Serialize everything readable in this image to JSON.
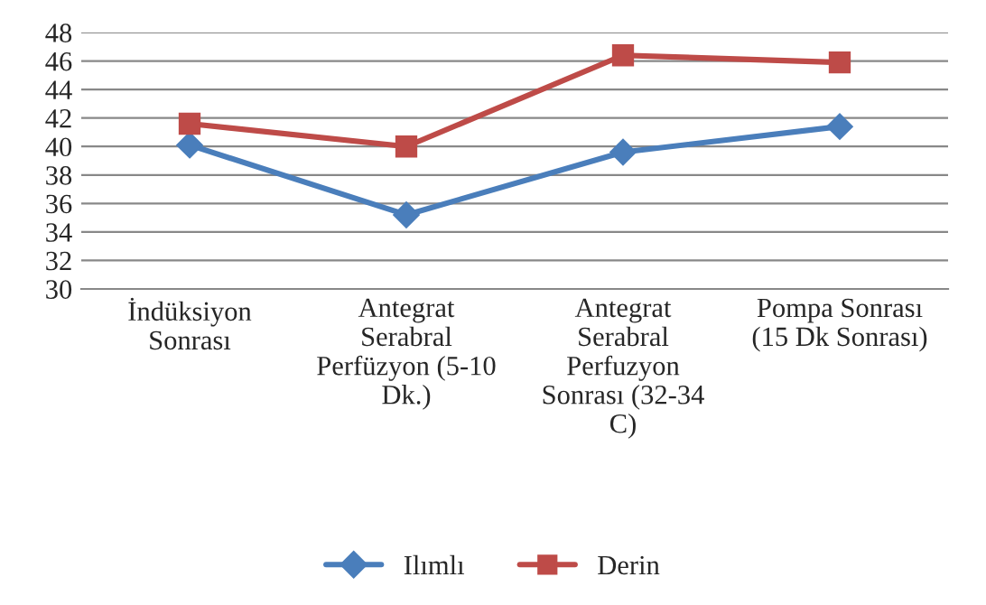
{
  "chart_data": {
    "type": "line",
    "categories": [
      "İndüksiyon\nSonrası",
      "Antegrat\nSerabral\nPerfüzyon (5-10\nDk.)",
      "Antegrat\nSerabral\nPerfuzyon\nSonrası (32-34\nC)",
      "Pompa Sonrası\n(15 Dk Sonrası)"
    ],
    "series": [
      {
        "name": "Ilımlı",
        "color": "#4a7ebb",
        "marker": "diamond",
        "values": [
          40.1,
          35.2,
          39.6,
          41.4
        ]
      },
      {
        "name": "Derin",
        "color": "#be4b48",
        "marker": "square",
        "values": [
          41.6,
          40.0,
          46.4,
          45.9
        ]
      }
    ],
    "ylim": [
      30,
      48
    ],
    "yticks": [
      30,
      32,
      34,
      36,
      38,
      40,
      42,
      44,
      46,
      48
    ],
    "grid": "y",
    "legend": "bottom"
  }
}
